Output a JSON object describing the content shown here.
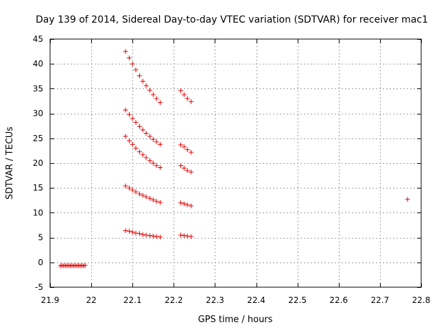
{
  "chart_data": {
    "type": "scatter",
    "title": "Day 139 of 2014, Sidereal Day-to-day VTEC variation (SDTVAR) for receiver mac1",
    "xlabel": "GPS time / hours",
    "ylabel": "SDTVAR / TECUs",
    "xlim": [
      21.9,
      22.8
    ],
    "ylim": [
      -5,
      45
    ],
    "x_ticks": [
      21.9,
      22,
      22.1,
      22.2,
      22.3,
      22.4,
      22.5,
      22.6,
      22.7,
      22.8
    ],
    "x_tick_labels": [
      "21.9",
      "22",
      "22.1",
      "22.2",
      "22.3",
      "22.4",
      "22.5",
      "22.6",
      "22.7",
      "22.8"
    ],
    "y_ticks": [
      -5,
      0,
      5,
      10,
      15,
      20,
      25,
      30,
      35,
      40,
      45
    ],
    "y_tick_labels": [
      "-5",
      "0",
      "5",
      "10",
      "15",
      "20",
      "25",
      "30",
      "35",
      "40",
      "45"
    ],
    "grid": true,
    "marker": "+",
    "marker_color": "#e00000",
    "series": [
      {
        "name": "SDTVAR",
        "points": [
          [
            21.925,
            -0.7
          ],
          [
            21.929,
            -0.6
          ],
          [
            21.933,
            -0.7
          ],
          [
            21.937,
            -0.6
          ],
          [
            21.941,
            -0.7
          ],
          [
            21.945,
            -0.6
          ],
          [
            21.949,
            -0.7
          ],
          [
            21.953,
            -0.6
          ],
          [
            21.957,
            -0.7
          ],
          [
            21.961,
            -0.6
          ],
          [
            21.965,
            -0.7
          ],
          [
            21.969,
            -0.6
          ],
          [
            21.973,
            -0.7
          ],
          [
            21.977,
            -0.6
          ],
          [
            21.981,
            -0.7
          ],
          [
            21.985,
            -0.6
          ],
          [
            22.083,
            42.5
          ],
          [
            22.092,
            41.2
          ],
          [
            22.1,
            40.0
          ],
          [
            22.108,
            38.8
          ],
          [
            22.117,
            37.6
          ],
          [
            22.125,
            36.5
          ],
          [
            22.133,
            35.6
          ],
          [
            22.142,
            34.7
          ],
          [
            22.15,
            33.8
          ],
          [
            22.158,
            33.0
          ],
          [
            22.167,
            32.2
          ],
          [
            22.083,
            30.7
          ],
          [
            22.092,
            29.8
          ],
          [
            22.1,
            29.0
          ],
          [
            22.108,
            28.2
          ],
          [
            22.117,
            27.4
          ],
          [
            22.125,
            26.7
          ],
          [
            22.133,
            26.0
          ],
          [
            22.142,
            25.4
          ],
          [
            22.15,
            24.8
          ],
          [
            22.158,
            24.3
          ],
          [
            22.167,
            23.8
          ],
          [
            22.083,
            25.4
          ],
          [
            22.092,
            24.5
          ],
          [
            22.1,
            23.8
          ],
          [
            22.108,
            23.0
          ],
          [
            22.117,
            22.3
          ],
          [
            22.125,
            21.7
          ],
          [
            22.133,
            21.1
          ],
          [
            22.142,
            20.5
          ],
          [
            22.15,
            20.0
          ],
          [
            22.158,
            19.5
          ],
          [
            22.167,
            19.1
          ],
          [
            22.083,
            15.4
          ],
          [
            22.092,
            15.0
          ],
          [
            22.1,
            14.6
          ],
          [
            22.108,
            14.2
          ],
          [
            22.117,
            13.8
          ],
          [
            22.125,
            13.5
          ],
          [
            22.133,
            13.2
          ],
          [
            22.142,
            12.9
          ],
          [
            22.15,
            12.6
          ],
          [
            22.158,
            12.3
          ],
          [
            22.167,
            12.1
          ],
          [
            22.083,
            6.4
          ],
          [
            22.092,
            6.3
          ],
          [
            22.1,
            6.1
          ],
          [
            22.108,
            5.9
          ],
          [
            22.117,
            5.8
          ],
          [
            22.125,
            5.6
          ],
          [
            22.133,
            5.5
          ],
          [
            22.142,
            5.4
          ],
          [
            22.15,
            5.3
          ],
          [
            22.158,
            5.2
          ],
          [
            22.167,
            5.1
          ],
          [
            22.217,
            34.6
          ],
          [
            22.225,
            33.8
          ],
          [
            22.233,
            33.0
          ],
          [
            22.242,
            32.4
          ],
          [
            22.217,
            23.7
          ],
          [
            22.225,
            23.3
          ],
          [
            22.233,
            22.7
          ],
          [
            22.242,
            22.2
          ],
          [
            22.217,
            19.5
          ],
          [
            22.225,
            19.0
          ],
          [
            22.233,
            18.5
          ],
          [
            22.242,
            18.2
          ],
          [
            22.217,
            12.0
          ],
          [
            22.225,
            11.8
          ],
          [
            22.233,
            11.6
          ],
          [
            22.242,
            11.4
          ],
          [
            22.217,
            5.5
          ],
          [
            22.225,
            5.4
          ],
          [
            22.233,
            5.3
          ],
          [
            22.242,
            5.2
          ],
          [
            22.767,
            12.7
          ]
        ]
      }
    ]
  }
}
